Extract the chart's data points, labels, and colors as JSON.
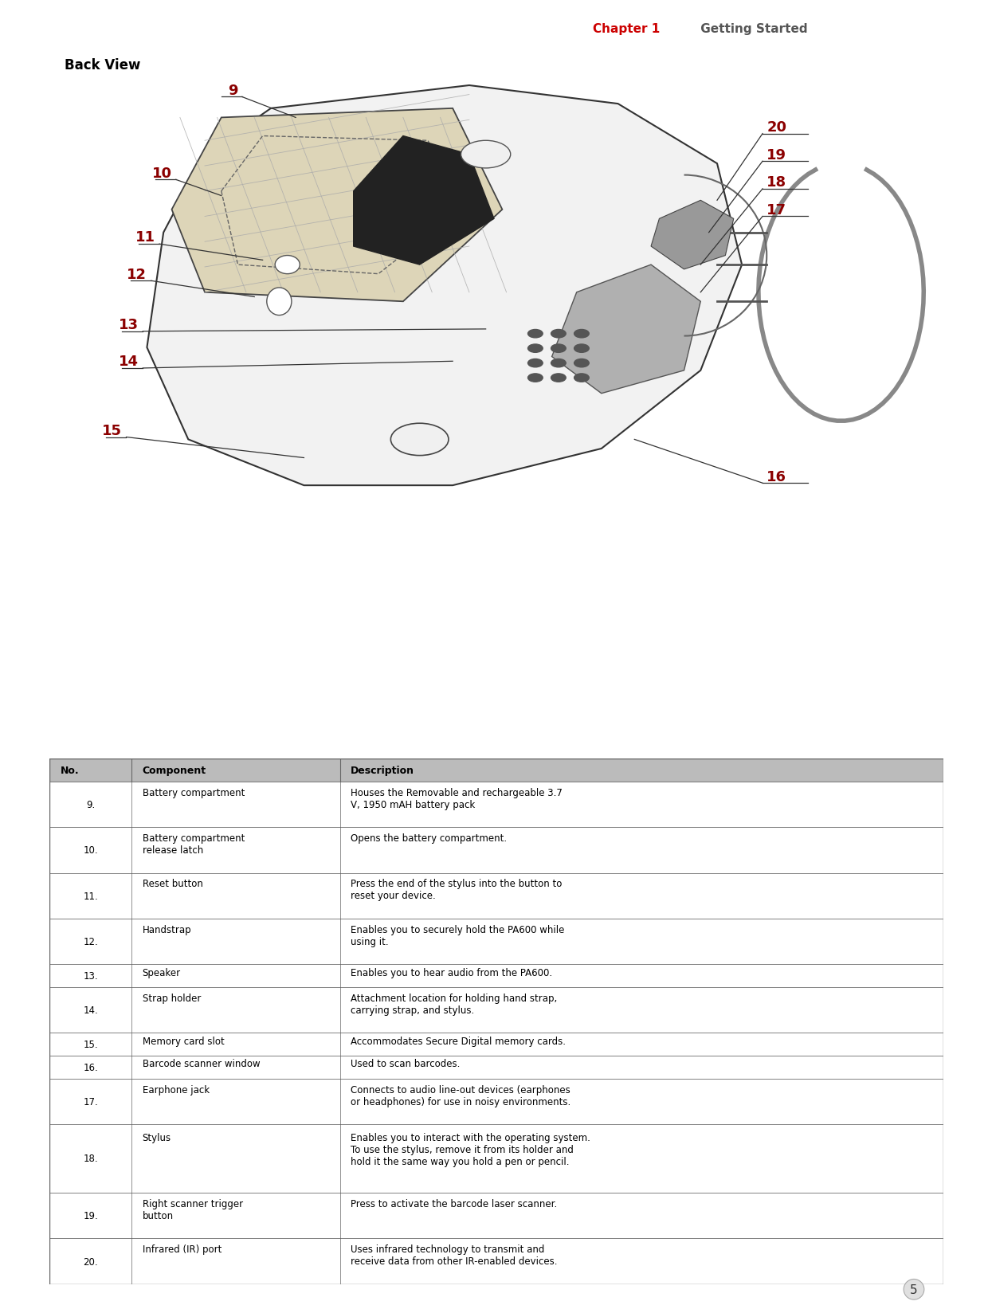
{
  "page_width": 12.4,
  "page_height": 16.49,
  "bg_color": "#ffffff",
  "header_text_chapter": "Chapter 1",
  "header_text_rest": " Getting Started",
  "header_line_color": "#ff0000",
  "header_text_color_red": "#cc0000",
  "header_text_color_gray": "#555555",
  "back_view_label": "Back View",
  "page_number": "5",
  "table_header": [
    "No.",
    "Component",
    "Description"
  ],
  "table_rows": [
    [
      "9.",
      "Battery compartment",
      "Houses the Removable and rechargeable 3.7\nV, 1950 mAH battery pack"
    ],
    [
      "10.",
      "Battery compartment\nrelease latch",
      "Opens the battery compartment."
    ],
    [
      "11.",
      "Reset button",
      "Press the end of the stylus into the button to\nreset your device."
    ],
    [
      "12.",
      "Handstrap",
      "Enables you to securely hold the PA600 while\nusing it."
    ],
    [
      "13.",
      "Speaker",
      "Enables you to hear audio from the PA600."
    ],
    [
      "14.",
      "Strap holder",
      "Attachment location for holding hand strap,\ncarrying strap, and stylus."
    ],
    [
      "15.",
      "Memory card slot",
      "Accommodates Secure Digital memory cards."
    ],
    [
      "16.",
      "Barcode scanner window",
      "Used to scan barcodes."
    ],
    [
      "17.",
      "Earphone jack",
      "Connects to audio line-out devices (earphones\nor headphones) for use in noisy environments."
    ],
    [
      "18.",
      "Stylus",
      "Enables you to interact with the operating system.\nTo use the stylus, remove it from its holder and\nhold it the same way you hold a pen or pencil."
    ],
    [
      "19.",
      "Right scanner trigger\nbutton",
      "Press to activate the barcode laser scanner."
    ],
    [
      "20.",
      "Infrared (IR) port",
      "Uses infrared technology to transmit and\nreceive data from other IR-enabled devices."
    ]
  ],
  "table_header_bg": "#bbbbbb",
  "table_row_bg1": "#ffffff",
  "table_row_bg2": "#ffffff",
  "table_border_color": "#666666",
  "label_color": "#8b0000",
  "callout_line_color": "#333333"
}
